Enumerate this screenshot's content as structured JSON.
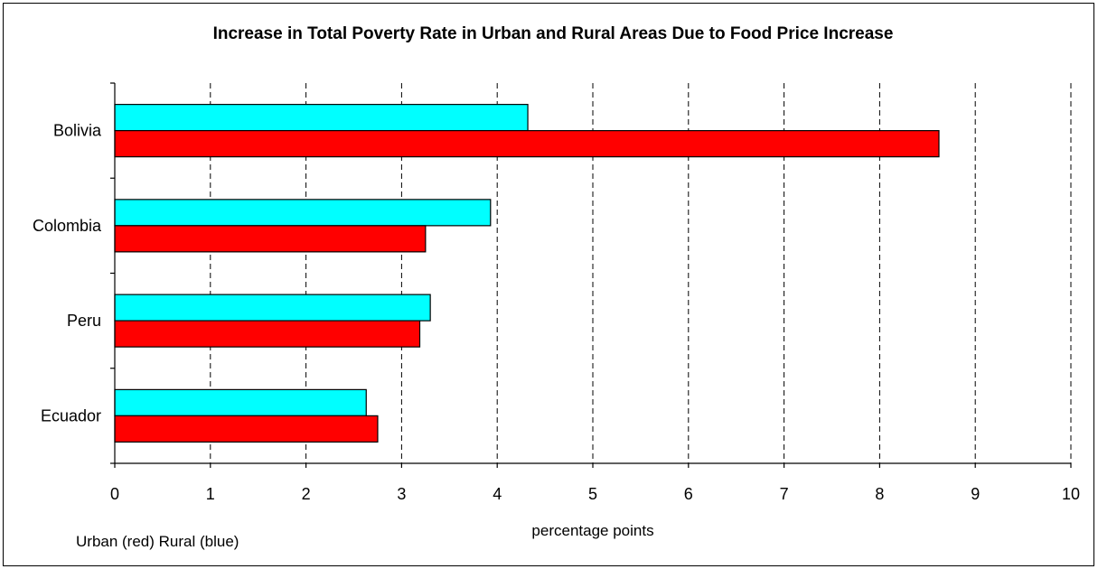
{
  "chart_data": {
    "type": "bar",
    "orientation": "horizontal",
    "title": "Increase in Total Poverty Rate in Urban and Rural Areas Due to Food Price Increase",
    "xlabel": "percentage points",
    "legend_note": "Urban (red) Rural (blue)",
    "categories": [
      "Bolivia",
      "Colombia",
      "Peru",
      "Ecuador"
    ],
    "series": [
      {
        "key": "rural",
        "color": "#00ffff",
        "values": [
          4.32,
          3.93,
          3.3,
          2.63
        ]
      },
      {
        "key": "urban",
        "color": "#ff0000",
        "values": [
          8.62,
          3.25,
          3.19,
          2.75
        ]
      }
    ],
    "xlim": [
      0,
      10
    ],
    "xticks": [
      "0",
      "1",
      "2",
      "3",
      "4",
      "5",
      "6",
      "7",
      "8",
      "9",
      "10"
    ],
    "grid": "vertical dashed",
    "legend": "none"
  }
}
